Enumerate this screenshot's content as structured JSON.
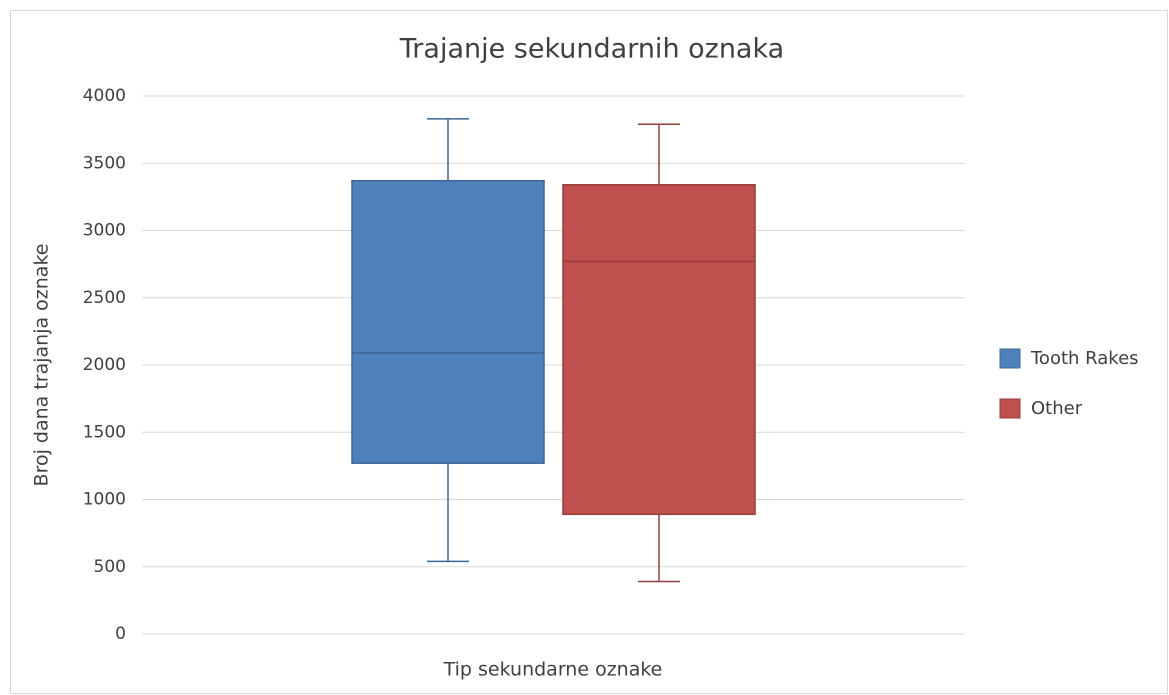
{
  "chart_data": {
    "type": "box",
    "title": "Trajanje sekundarnih oznaka",
    "x_label": "Tip sekundarne oznake",
    "y_label": "Broj dana trajanja oznake",
    "ylim": [
      0,
      4000
    ],
    "yticks": [
      0,
      500,
      1000,
      1500,
      2000,
      2500,
      3000,
      3500,
      4000
    ],
    "grid": true,
    "legend": "right",
    "series": [
      {
        "name": "Tooth Rakes",
        "color": "#4f81bd",
        "min": 540,
        "q1": 1270,
        "median": 2090,
        "q3": 3370,
        "max": 3830
      },
      {
        "name": "Other",
        "color": "#c0504d",
        "min": 390,
        "q1": 890,
        "median": 2770,
        "q3": 3340,
        "max": 3790
      }
    ]
  }
}
